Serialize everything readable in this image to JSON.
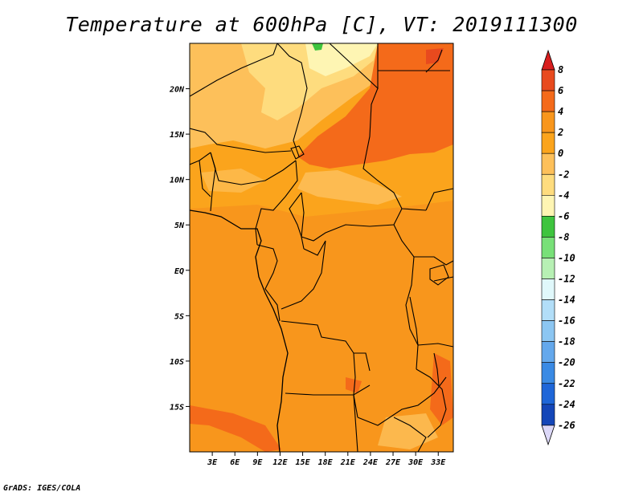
{
  "title": "Temperature at 600hPa [C], VT: 2019111300",
  "credit": "GrADS: IGES/COLA",
  "map": {
    "projection": "lat-lon",
    "lon_range": [
      0,
      35
    ],
    "lat_range": [
      -20,
      25
    ],
    "lat_ticks": [
      {
        "value": 20,
        "label": "20N"
      },
      {
        "value": 15,
        "label": "15N"
      },
      {
        "value": 10,
        "label": "10N"
      },
      {
        "value": 5,
        "label": "5N"
      },
      {
        "value": 0,
        "label": "EQ"
      },
      {
        "value": -5,
        "label": "5S"
      },
      {
        "value": -10,
        "label": "10S"
      },
      {
        "value": -15,
        "label": "15S"
      }
    ],
    "lon_ticks": [
      {
        "value": 3,
        "label": "3E"
      },
      {
        "value": 6,
        "label": "6E"
      },
      {
        "value": 9,
        "label": "9E"
      },
      {
        "value": 12,
        "label": "12E"
      },
      {
        "value": 15,
        "label": "15E"
      },
      {
        "value": 18,
        "label": "18E"
      },
      {
        "value": 21,
        "label": "21E"
      },
      {
        "value": 24,
        "label": "24E"
      },
      {
        "value": 27,
        "label": "27E"
      },
      {
        "value": 30,
        "label": "30E"
      },
      {
        "value": 33,
        "label": "33E"
      }
    ]
  },
  "colorbar": {
    "levels": [
      {
        "label": "8",
        "color": "#e84a1e"
      },
      {
        "label": "6",
        "color": "#f46a1a"
      },
      {
        "label": "4",
        "color": "#f8961c"
      },
      {
        "label": "2",
        "color": "#fba41c"
      },
      {
        "label": "0",
        "color": "#fdc05a"
      },
      {
        "label": "-2",
        "color": "#fedc7e"
      },
      {
        "label": "-4",
        "color": "#fef5b3"
      },
      {
        "label": "-6",
        "color": "#3ec43e"
      },
      {
        "label": "-8",
        "color": "#78e078"
      },
      {
        "label": "-10",
        "color": "#b7f0b4"
      },
      {
        "label": "-12",
        "color": "#e0f8fb"
      },
      {
        "label": "-14",
        "color": "#b2def8"
      },
      {
        "label": "-16",
        "color": "#8cc6f2"
      },
      {
        "label": "-18",
        "color": "#64a8ec"
      },
      {
        "label": "-20",
        "color": "#3a8ae4"
      },
      {
        "label": "-22",
        "color": "#1e66d8"
      },
      {
        "label": "-24",
        "color": "#1446b8"
      },
      {
        "label": "-26",
        "color": "#0c1e7a"
      }
    ],
    "top_arrow_color": "#d81e1e",
    "bottom_arrow_color": "#dcd8f8"
  },
  "colors": {
    "base": "#fba41c",
    "warm": "#f8961c",
    "warmer": "#f46a1a",
    "cool": "#fdc05a",
    "cooler": "#fedc7e",
    "coolest": "#fef5b3",
    "green": "#3ec43e",
    "border": "#000000"
  }
}
